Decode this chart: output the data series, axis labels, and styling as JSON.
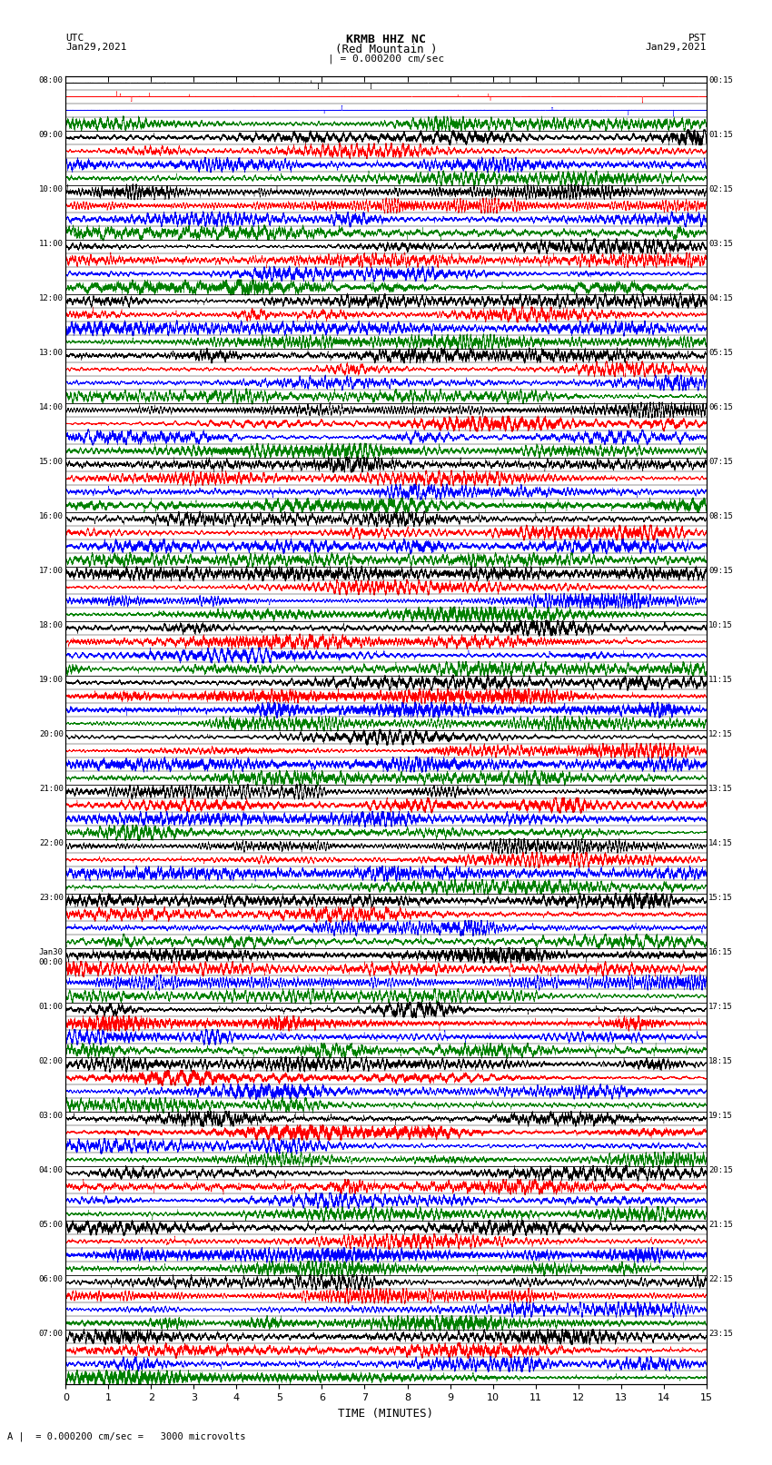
{
  "title_line1": "KRMB HHZ NC",
  "title_line2": "(Red Mountain )",
  "scale_label": "| = 0.000200 cm/sec",
  "left_date": "UTC\nJan29,2021",
  "right_date": "PST\nJan29,2021",
  "footer_label": "A |  = 0.000200 cm/sec =   3000 microvolts",
  "xlabel": "TIME (MINUTES)",
  "left_times_utc": [
    "08:00",
    "09:00",
    "10:00",
    "11:00",
    "12:00",
    "13:00",
    "14:00",
    "15:00",
    "16:00",
    "17:00",
    "18:00",
    "19:00",
    "20:00",
    "21:00",
    "22:00",
    "23:00",
    "Jan30\n00:00",
    "01:00",
    "02:00",
    "03:00",
    "04:00",
    "05:00",
    "06:00",
    "07:00"
  ],
  "right_times_pst": [
    "00:15",
    "01:15",
    "02:15",
    "03:15",
    "04:15",
    "05:15",
    "06:15",
    "07:15",
    "08:15",
    "09:15",
    "10:15",
    "11:15",
    "12:15",
    "13:15",
    "14:15",
    "15:15",
    "16:15",
    "17:15",
    "18:15",
    "19:15",
    "20:15",
    "21:15",
    "22:15",
    "23:15"
  ],
  "n_rows": 24,
  "n_traces_per_row": 4,
  "colors": [
    "black",
    "red",
    "blue",
    "green"
  ],
  "x_ticks": [
    0,
    1,
    2,
    3,
    4,
    5,
    6,
    7,
    8,
    9,
    10,
    11,
    12,
    13,
    14,
    15
  ],
  "fig_width": 8.5,
  "fig_height": 16.13,
  "dpi": 100,
  "plot_bg": "white"
}
